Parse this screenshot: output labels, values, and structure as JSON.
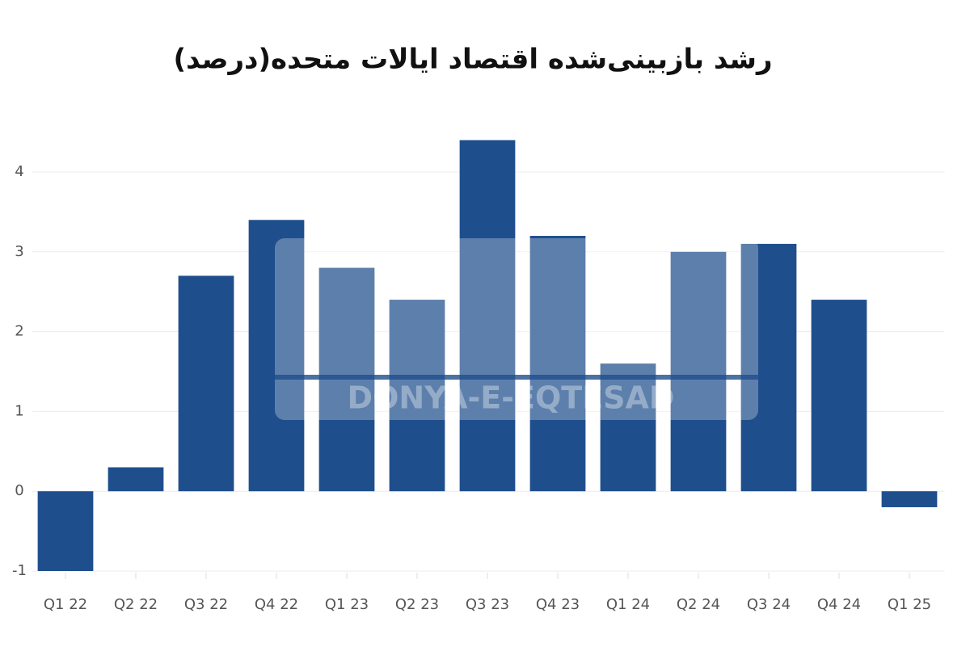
{
  "chart_data": {
    "type": "bar",
    "title": "رشد بازبینی‌شده اقتصاد ایالات متحده(درصد)",
    "categories": [
      "Q1 22",
      "Q2 22",
      "Q3 22",
      "Q4 22",
      "Q1 23",
      "Q2 23",
      "Q3 23",
      "Q4 23",
      "Q1 24",
      "Q2 24",
      "Q3 24",
      "Q4 24",
      "Q1 25"
    ],
    "values": [
      -1.0,
      0.3,
      2.7,
      3.4,
      2.8,
      2.4,
      4.4,
      3.2,
      1.6,
      3.0,
      3.1,
      2.4,
      -0.2
    ],
    "color": "#1f4e8c",
    "ylim": [
      -1,
      4.5
    ],
    "yticks": [
      -1,
      0,
      1,
      2,
      3,
      4
    ],
    "grid": true,
    "watermark": "DONYA-E-EQTESAD"
  }
}
